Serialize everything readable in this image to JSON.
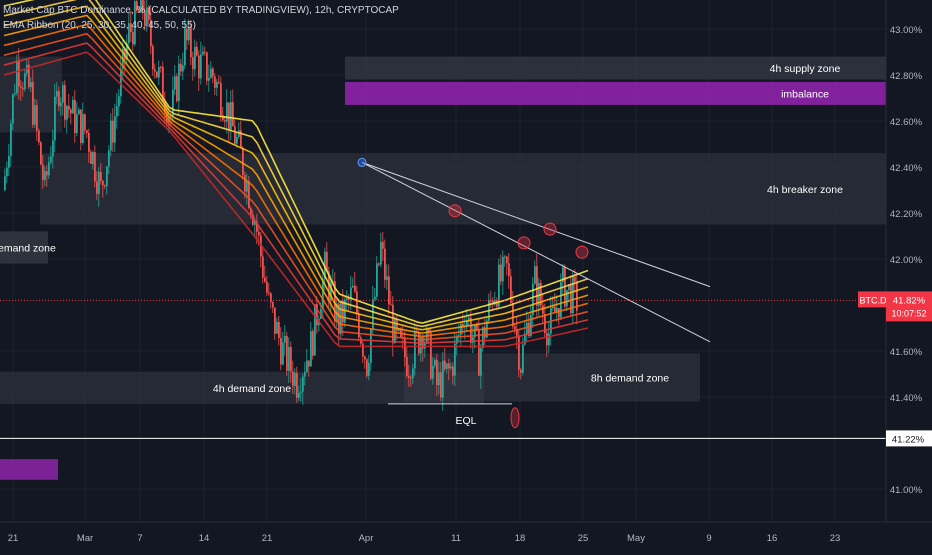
{
  "header": {
    "title_line": "Market Cap BTC Dominance, % (CALCULATED BY TRADINGVIEW), 12h, CRYPTOCAP",
    "indicator_line": "EMA Ribbon (20, 25, 30, 35, 40, 45, 50, 55)"
  },
  "price_label": {
    "symbol": "BTC.D",
    "value": "41.82%",
    "countdown": "10:07:52"
  },
  "level_label": "41.22%",
  "zones": {
    "supply": "4h supply zone",
    "imbalance": "imbalance",
    "breaker": "4h breaker zone",
    "demand_left_cut": "emand zone",
    "demand_4h": "4h demand zone",
    "demand_8h": "8h demand zone",
    "eql": "EQL"
  },
  "colors": {
    "background": "#131722",
    "up_candle": "#26a69a",
    "down_candle": "#ef5350",
    "imbalance": "#8e24aa",
    "zone_fill": "#363a45",
    "price_tag": "#f23645",
    "ribbon": [
      "#ffeb3b",
      "#ffd740",
      "#ffc107",
      "#ffa000",
      "#ff6f00",
      "#f4511e",
      "#e53935",
      "#c62828"
    ]
  },
  "chart_data": {
    "type": "candlestick",
    "title": "Market Cap BTC Dominance, % (CALCULATED BY TRADINGVIEW), 12h, CRYPTOCAP",
    "timeframe": "12h",
    "y_axis": {
      "unit": "%",
      "ticks": [
        "43.00%",
        "42.80%",
        "42.60%",
        "42.40%",
        "42.20%",
        "42.00%",
        "41.60%",
        "41.40%",
        "41.00%"
      ],
      "ylim": [
        40.92,
        43.12
      ]
    },
    "x_axis": {
      "ticks": [
        "21",
        "Mar",
        "7",
        "14",
        "21",
        "Apr",
        "11",
        "18",
        "25",
        "May",
        "9",
        "16",
        "23"
      ]
    },
    "last_price": 41.82,
    "horizontal_level": 41.22,
    "ema_periods": [
      20,
      25,
      30,
      35,
      40,
      45,
      50,
      55
    ],
    "zones": [
      {
        "label": "4h supply zone",
        "from": 42.78,
        "to": 42.88
      },
      {
        "label": "imbalance",
        "from": 42.67,
        "to": 42.77
      },
      {
        "label": "4h breaker zone",
        "from": 42.15,
        "to": 42.46
      },
      {
        "label": "4h demand zone",
        "from": 41.37,
        "to": 41.51
      },
      {
        "label": "8h demand zone",
        "from": 41.38,
        "to": 41.59
      }
    ],
    "annotations": [
      "EQL"
    ],
    "ribbon_path": [
      [
        42.8,
        43.1
      ],
      [
        42.9,
        43.18
      ],
      [
        42.55,
        42.65
      ],
      [
        42.1,
        42.6
      ],
      [
        41.62,
        41.85
      ],
      [
        41.62,
        41.72
      ],
      [
        41.62,
        41.82
      ],
      [
        41.7,
        41.95
      ]
    ],
    "close_path": [
      42.28,
      42.85,
      42.72,
      42.3,
      42.75,
      42.62,
      42.55,
      42.3,
      42.62,
      42.98,
      43.1,
      42.82,
      42.62,
      42.95,
      42.85,
      42.8,
      42.65,
      42.45,
      42.18,
      41.8,
      41.6,
      41.47,
      41.62,
      41.95,
      41.72,
      41.85,
      41.55,
      42.05,
      41.65,
      41.55,
      41.7,
      41.45,
      41.52,
      41.78,
      41.58,
      41.85,
      41.95,
      41.55,
      41.9,
      41.68,
      41.88,
      41.82
    ]
  }
}
